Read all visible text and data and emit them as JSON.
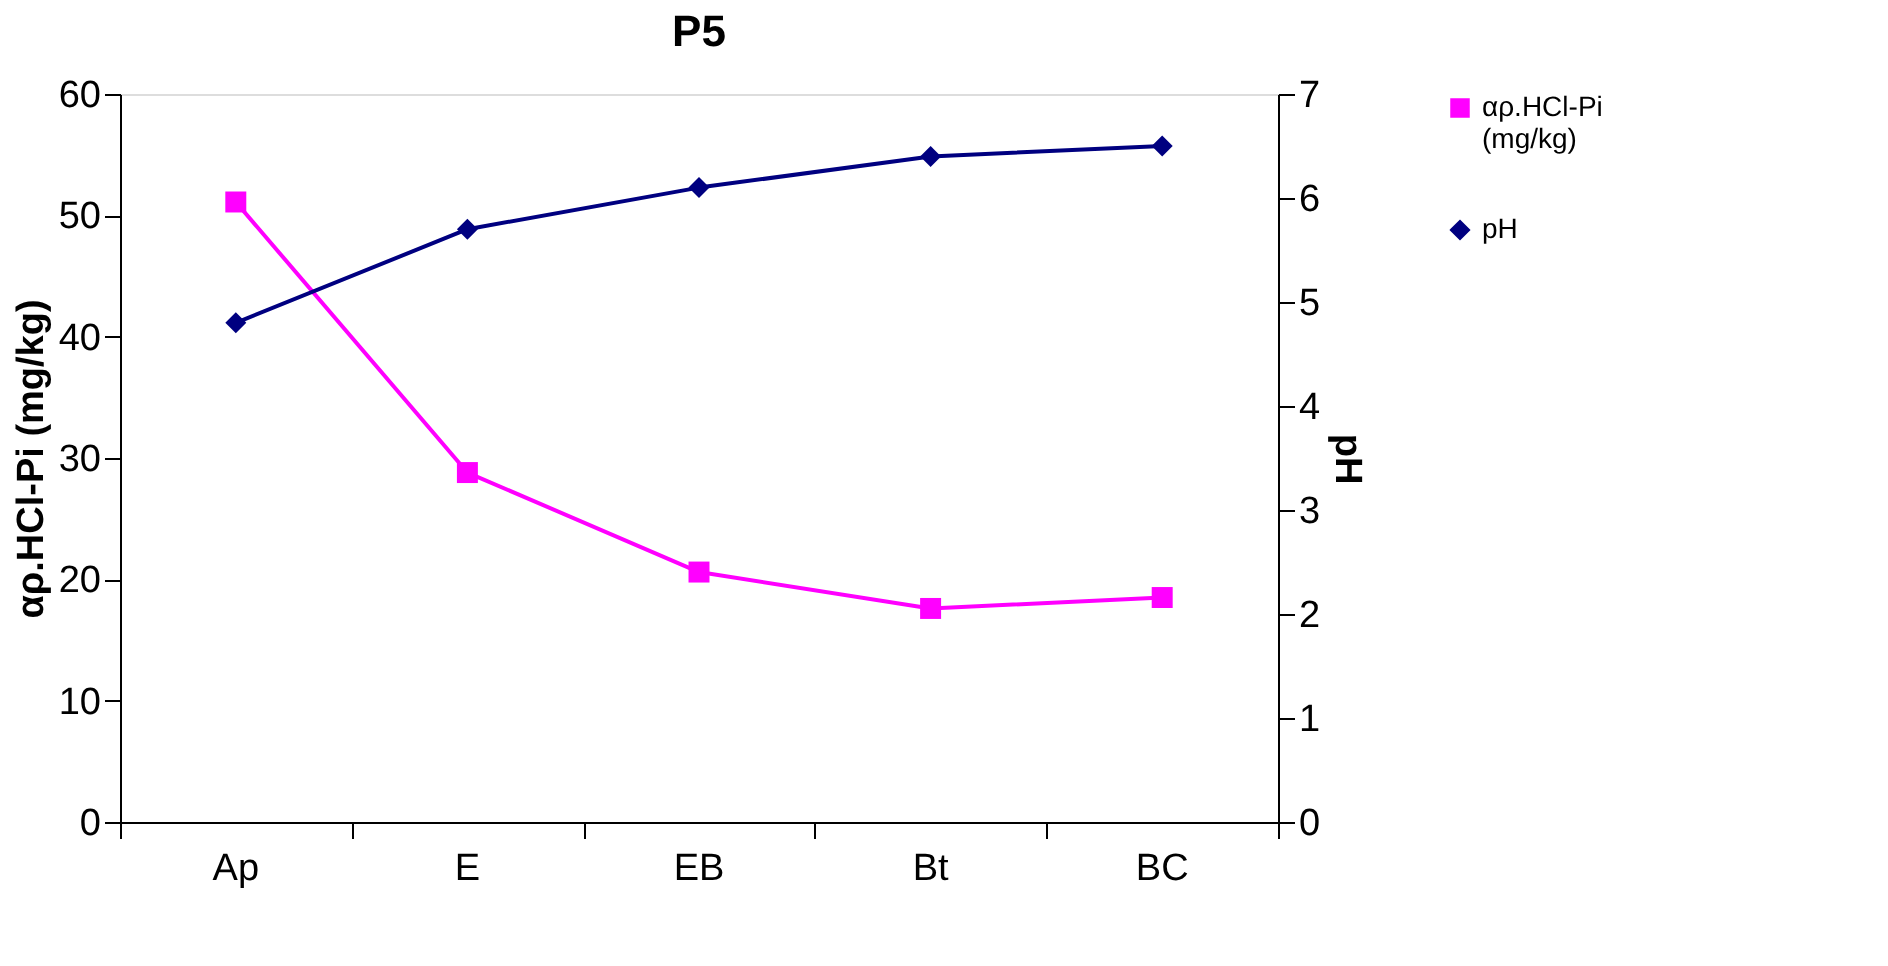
{
  "chart_data": {
    "type": "line",
    "title": "P5",
    "ylabel": "αρ.HCl-Pi (mg/kg)",
    "y2label": "pH",
    "categories": [
      "Ap",
      "E",
      "EB",
      "Bt",
      "BC"
    ],
    "series": [
      {
        "name": "αρ.HCl-Pi (mg/kg)",
        "color": "#ff00ff",
        "marker": "square",
        "values": [
          51.1,
          28.8,
          20.6,
          17.6,
          18.5
        ]
      },
      {
        "name": "pH",
        "color": "#000080",
        "marker": "diamond",
        "axis": "y2",
        "values": [
          4.8,
          5.7,
          6.1,
          6.4,
          6.5
        ]
      }
    ],
    "ylim": [
      0,
      60
    ],
    "yticks": [
      0,
      10,
      20,
      30,
      40,
      50,
      60
    ],
    "y2lim": [
      0,
      7
    ],
    "y2ticks": [
      0,
      1,
      2,
      3,
      4,
      5,
      6,
      7
    ],
    "grid": false,
    "legend": "right",
    "line_style": "solid"
  }
}
